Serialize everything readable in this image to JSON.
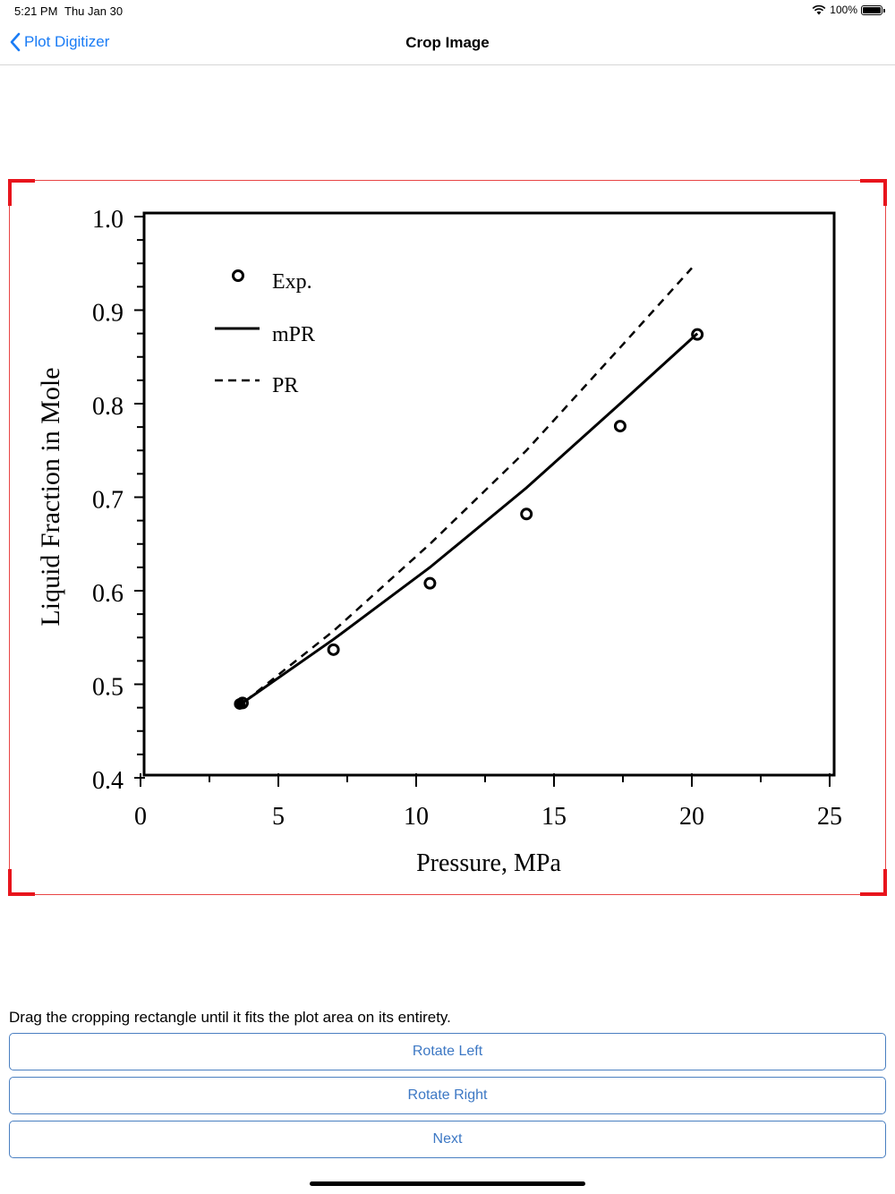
{
  "status_bar": {
    "time": "5:21 PM",
    "date": "Thu Jan 30",
    "battery": "100%"
  },
  "nav": {
    "back_label": "Plot Digitizer",
    "title": "Crop Image"
  },
  "chart_data": {
    "type": "scatter",
    "xlabel": "Pressure, MPa",
    "ylabel": "Liquid Fraction in Mole",
    "xlim": [
      0,
      25
    ],
    "ylim": [
      0.4,
      1.0
    ],
    "x_ticks": [
      "0",
      "5",
      "10",
      "15",
      "20",
      "25"
    ],
    "y_ticks": [
      "0.4",
      "0.5",
      "0.6",
      "0.7",
      "0.8",
      "0.9",
      "1.0"
    ],
    "legend": {
      "exp": "Exp.",
      "mpr": "mPR",
      "pr": "PR"
    },
    "series": [
      {
        "name": "Exp.",
        "style": "circles",
        "x": [
          3.7,
          7.0,
          10.5,
          14.0,
          17.4,
          20.2
        ],
        "y": [
          0.48,
          0.537,
          0.608,
          0.682,
          0.776,
          0.874
        ]
      },
      {
        "name": "mPR",
        "style": "solid",
        "x": [
          3.6,
          7.0,
          10.5,
          14.0,
          17.4,
          20.2
        ],
        "y": [
          0.478,
          0.548,
          0.625,
          0.71,
          0.8,
          0.875
        ]
      },
      {
        "name": "PR",
        "style": "dashed",
        "x": [
          3.8,
          7.0,
          10.5,
          14.0,
          17.4,
          20.0
        ],
        "y": [
          0.482,
          0.557,
          0.65,
          0.75,
          0.86,
          0.945
        ]
      }
    ]
  },
  "instructions": "Drag the cropping rectangle until it fits the plot area on its entirety.",
  "buttons": {
    "rotate_left": "Rotate Left",
    "rotate_right": "Rotate Right",
    "next": "Next"
  }
}
